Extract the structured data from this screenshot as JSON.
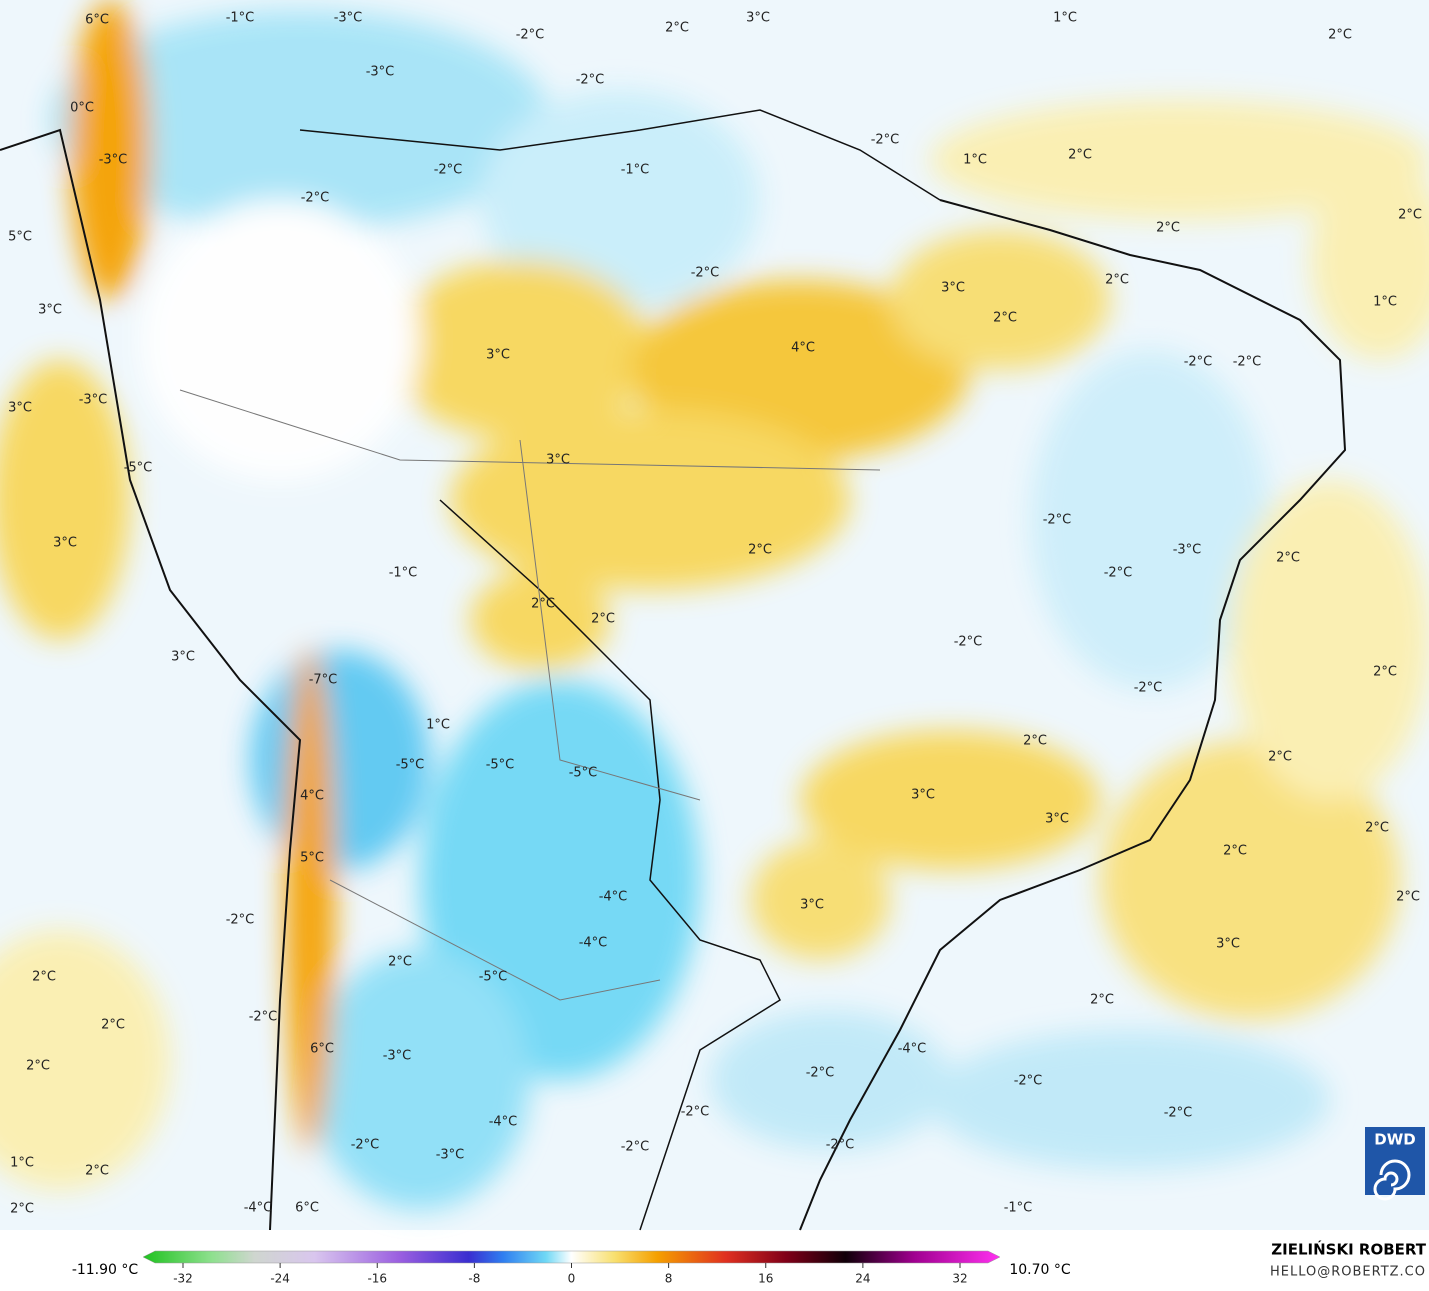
{
  "map": {
    "labels": [
      "6°C",
      "-1°C",
      "-3°C",
      "-2°C",
      "2°C",
      "3°C",
      "1°C",
      "2°C",
      "-3°C",
      "-2°C",
      "0°C",
      "-2°C",
      "1°C",
      "2°C",
      "-3°C",
      "-2°C",
      "-1°C",
      "-2°C",
      "2°C",
      "2°C",
      "5°C",
      "-2°C",
      "3°C",
      "2°C",
      "1°C",
      "3°C",
      "2°C",
      "4°C",
      "3°C",
      "-2°C",
      "-2°C",
      "-3°C",
      "3°C",
      "3°C",
      "-5°C",
      "-2°C",
      "3°C",
      "2°C",
      "-3°C",
      "2°C",
      "-2°C",
      "-1°C",
      "2°C",
      "2°C",
      "-2°C",
      "3°C",
      "2°C",
      "-7°C",
      "-2°C",
      "1°C",
      "2°C",
      "-5°C",
      "-5°C",
      "-5°C",
      "2°C",
      "3°C",
      "4°C",
      "3°C",
      "2°C",
      "2°C",
      "5°C",
      "-4°C",
      "3°C",
      "2°C",
      "-2°C",
      "-4°C",
      "3°C",
      "2°C",
      "-5°C",
      "2°C",
      "2°C",
      "-2°C",
      "2°C",
      "6°C",
      "-4°C",
      "-3°C",
      "2°C",
      "-2°C",
      "-2°C",
      "-2°C",
      "-4°C",
      "-2°C",
      "-2°C",
      "-2°C",
      "-2°C",
      "-3°C",
      "1°C",
      "2°C",
      "2°C",
      "-4°C",
      "6°C",
      "-1°C"
    ]
  },
  "colorbar": {
    "ticks": [
      -32,
      -24,
      -16,
      -8,
      0,
      8,
      16,
      24,
      32
    ],
    "min_label": "-11.90 °C",
    "max_label": "10.70 °C"
  },
  "credit": {
    "author": "ZIELIŃSKI ROBERT",
    "email": "HELLO@ROBERTZ.CO"
  },
  "logo": {
    "text": "DWD"
  }
}
